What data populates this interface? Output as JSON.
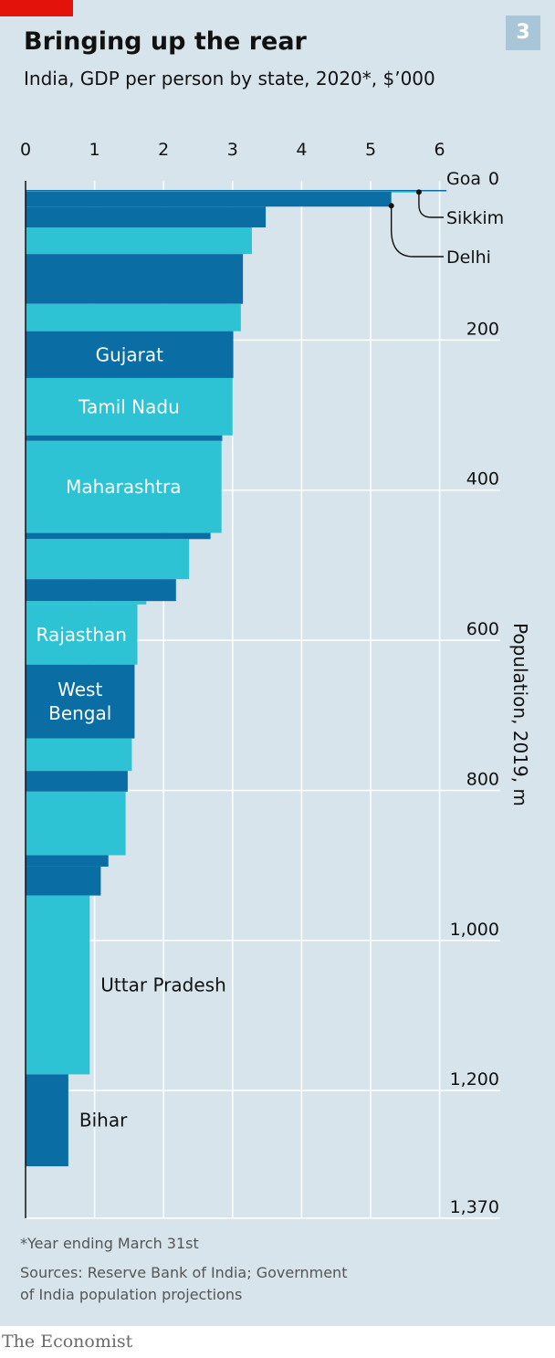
{
  "header": {
    "title": "Bringing up the rear",
    "subtitle": "India, GDP per person by state, 2020*, $’000",
    "badge": "3"
  },
  "footer": {
    "footnote": "*Year ending March 31st",
    "source_line1": "Sources: Reserve Bank of India; Government",
    "source_line2": "of India population projections",
    "brand": "The Economist"
  },
  "colors": {
    "panel": "#d7e4ec",
    "dark_blue": "#0a6ea5",
    "light_blue": "#2ec2d5",
    "grid": "#ffffff",
    "accent_red": "#e3120b",
    "text": "#111111"
  },
  "chart_data": {
    "type": "bar",
    "title": "Bringing up the rear",
    "subtitle": "India, GDP per person by state, 2020*, $’000",
    "x_axis": {
      "ticks": [
        0,
        1,
        2,
        3,
        4,
        5,
        6
      ],
      "tick_labels": [
        "0",
        "1",
        "2",
        "3",
        "4",
        "5",
        "6"
      ],
      "range": [
        0,
        6
      ]
    },
    "y_axis": {
      "label": "Population, 2019, m",
      "ticks": [
        0,
        200,
        400,
        600,
        800,
        1000,
        1200,
        1370
      ],
      "tick_labels": [
        "0",
        "200",
        "400",
        "600",
        "800",
        "1,000",
        "1,200",
        "1,370"
      ],
      "range": [
        0,
        1370
      ]
    },
    "grid": true,
    "bars": [
      {
        "label": "Goa",
        "value": 6.1,
        "pop": 1.6,
        "color": "dark",
        "callout": true
      },
      {
        "label": "Sikkim",
        "value": 5.7,
        "pop": 0.7,
        "color": "light",
        "callout": true
      },
      {
        "label": "Delhi",
        "value": 5.3,
        "pop": 19.9,
        "color": "dark",
        "callout": true
      },
      {
        "label": "",
        "value": 3.48,
        "pop": 27.7,
        "color": "dark"
      },
      {
        "label": "",
        "value": 3.28,
        "pop": 35.5,
        "color": "light"
      },
      {
        "label": "",
        "value": 3.15,
        "pop": 66.3,
        "color": "dark"
      },
      {
        "label": "",
        "value": 3.12,
        "pop": 36.5,
        "color": "light"
      },
      {
        "label": "Gujarat",
        "value": 3.01,
        "pop": 62.4,
        "color": "dark"
      },
      {
        "label": "Tamil Nadu",
        "value": 3.0,
        "pop": 76.4,
        "color": "light"
      },
      {
        "label": "",
        "value": 2.85,
        "pop": 7.4,
        "color": "dark"
      },
      {
        "label": "Maharashtra",
        "value": 2.84,
        "pop": 122.6,
        "color": "light"
      },
      {
        "label": "",
        "value": 2.68,
        "pop": 8.2,
        "color": "dark"
      },
      {
        "label": "",
        "value": 2.37,
        "pop": 53.4,
        "color": "light"
      },
      {
        "label": "",
        "value": 2.18,
        "pop": 29.2,
        "color": "dark"
      },
      {
        "label": "",
        "value": 1.75,
        "pop": 4.5,
        "color": "light"
      },
      {
        "label": "Rajasthan",
        "value": 1.62,
        "pop": 80.2,
        "color": "light"
      },
      {
        "label": "West Bengal",
        "value": 1.58,
        "pop": 98.3,
        "color": "dark"
      },
      {
        "label": "",
        "value": 1.54,
        "pop": 43.3,
        "color": "light"
      },
      {
        "label": "",
        "value": 1.48,
        "pop": 27.6,
        "color": "dark"
      },
      {
        "label": "",
        "value": 1.45,
        "pop": 84.7,
        "color": "light"
      },
      {
        "label": "",
        "value": 1.2,
        "pop": 15.2,
        "color": "dark"
      },
      {
        "label": "",
        "value": 1.09,
        "pop": 38.5,
        "color": "dark"
      },
      {
        "label": "Uttar Pradesh",
        "value": 0.93,
        "pop": 238.3,
        "color": "light"
      },
      {
        "label": "Bihar",
        "value": 0.62,
        "pop": 122.5,
        "color": "dark"
      }
    ]
  }
}
